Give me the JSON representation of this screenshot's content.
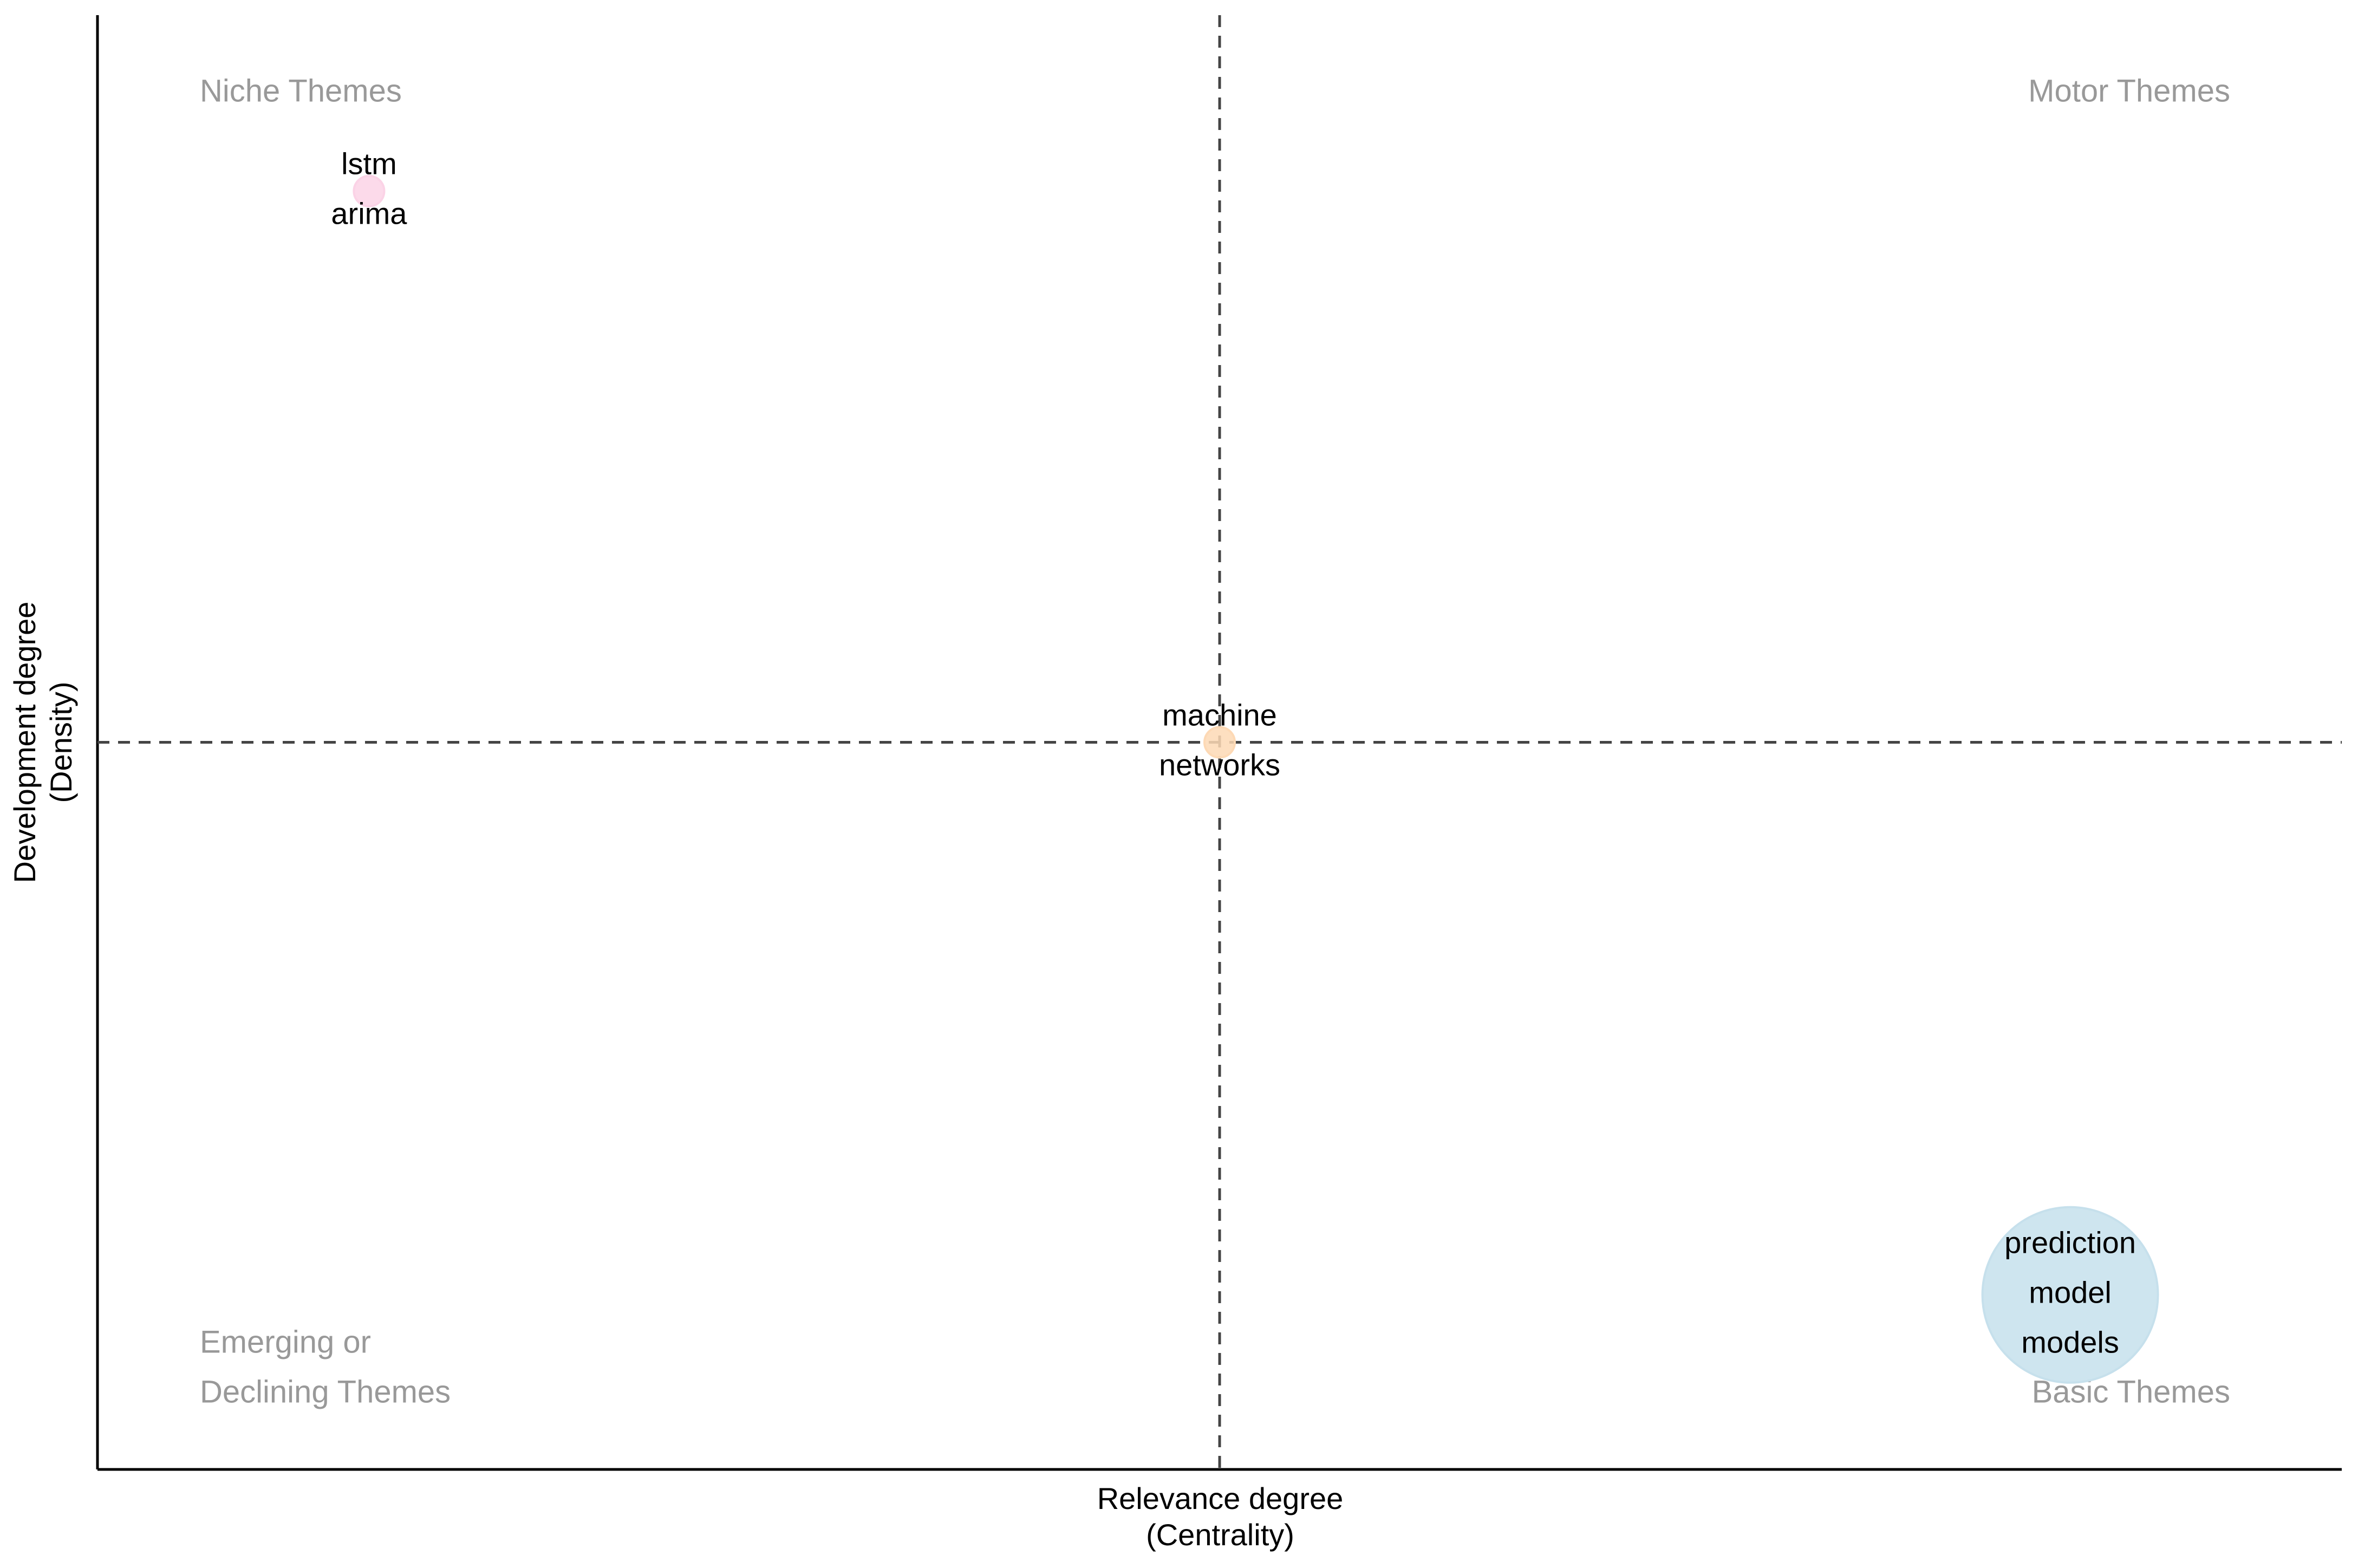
{
  "chart_data": {
    "type": "scatter",
    "x_label": [
      "Relevance degree",
      "(Centrality)"
    ],
    "y_label": [
      "Development degree",
      "(Density)"
    ],
    "xlim": [
      0,
      1
    ],
    "ylim": [
      0,
      1
    ],
    "xline": 0.5,
    "yline": 0.5,
    "quadrants": {
      "top_left": [
        "Niche Themes"
      ],
      "top_right": [
        "Motor Themes"
      ],
      "bottom_left": [
        "Emerging or",
        "Declining Themes"
      ],
      "bottom_right": [
        "Basic Themes"
      ]
    },
    "points": {
      "x": [
        0.121,
        0.5,
        0.879
      ],
      "y": [
        0.879,
        0.5,
        0.12
      ],
      "size": [
        1,
        1,
        34
      ],
      "colors": [
        "#fbd3e6",
        "#fdd9b5",
        "#c6e0ec"
      ],
      "labels": [
        [
          "lstm",
          "arima"
        ],
        [
          "machine",
          "networks"
        ],
        [
          "prediction",
          "model",
          "models"
        ]
      ]
    }
  }
}
